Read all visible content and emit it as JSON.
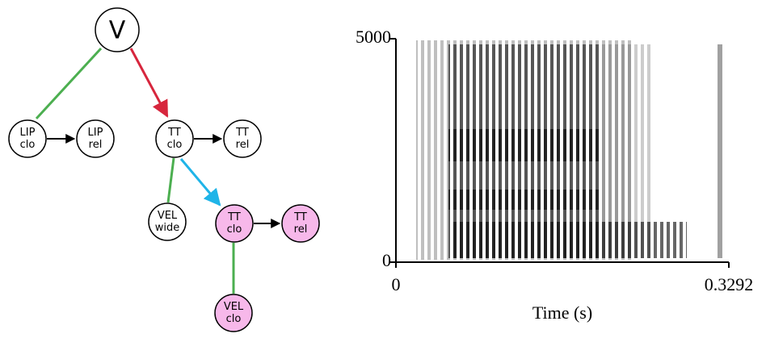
{
  "diagram": {
    "nodes": [
      {
        "lines": [
          "V"
        ]
      },
      {
        "lines": [
          "LIP",
          "clo"
        ]
      },
      {
        "lines": [
          "LIP",
          "rel"
        ]
      },
      {
        "lines": [
          "TT",
          "clo"
        ]
      },
      {
        "lines": [
          "TT",
          "rel"
        ]
      },
      {
        "lines": [
          "VEL",
          "wide"
        ]
      },
      {
        "lines": [
          "TT",
          "clo"
        ]
      },
      {
        "lines": [
          "TT",
          "rel"
        ]
      },
      {
        "lines": [
          "VEL",
          "clo"
        ]
      }
    ]
  },
  "chart_data": {
    "type": "spectrogram",
    "xlabel": "Time (s)",
    "xlim": [
      0,
      0.3292
    ],
    "ylim": [
      0,
      5000
    ],
    "xticks": [
      0,
      0.3292
    ],
    "yticks": [
      0,
      5000
    ]
  }
}
